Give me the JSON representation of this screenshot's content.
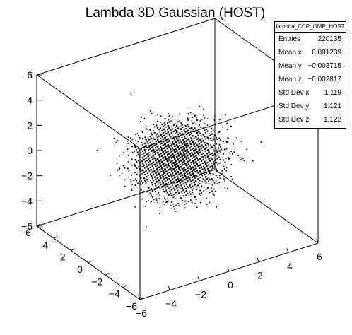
{
  "chart_data": {
    "type": "scatter",
    "subtype": "3d-box-scatter",
    "title": "Lambda 3D Gaussian (HOST)",
    "x_ticks": [
      "−6",
      "−4",
      "−2",
      "0",
      "2",
      "4",
      "6"
    ],
    "y_ticks": [
      "−6",
      "−4",
      "−2",
      "0",
      "2",
      "4",
      "6"
    ],
    "z_ticks": [
      "−6",
      "−4",
      "−2",
      "0",
      "2",
      "4",
      "6"
    ],
    "x_range": [
      -6,
      6
    ],
    "y_range": [
      -6,
      6
    ],
    "z_range": [
      -6,
      6
    ],
    "distribution": {
      "kind": "3D gaussian",
      "entries": 220135,
      "mean": [
        0.001239,
        -0.003715,
        -0.002817
      ],
      "std": [
        1.119,
        1.121,
        1.122
      ]
    },
    "legend": "top-right",
    "stats": {
      "name": "lambda_CCP_OMP_HOST",
      "rows": [
        {
          "key": "Entries",
          "value": "220135"
        },
        {
          "key": "Mean x",
          "value": "0.001239"
        },
        {
          "key": "Mean y",
          "value": "−0.003715"
        },
        {
          "key": "Mean z",
          "value": "−0.002817"
        },
        {
          "key": "Std Dev x",
          "value": "1.119"
        },
        {
          "key": "Std Dev y",
          "value": "1.121"
        },
        {
          "key": "Std Dev z",
          "value": "1.122"
        }
      ]
    }
  }
}
